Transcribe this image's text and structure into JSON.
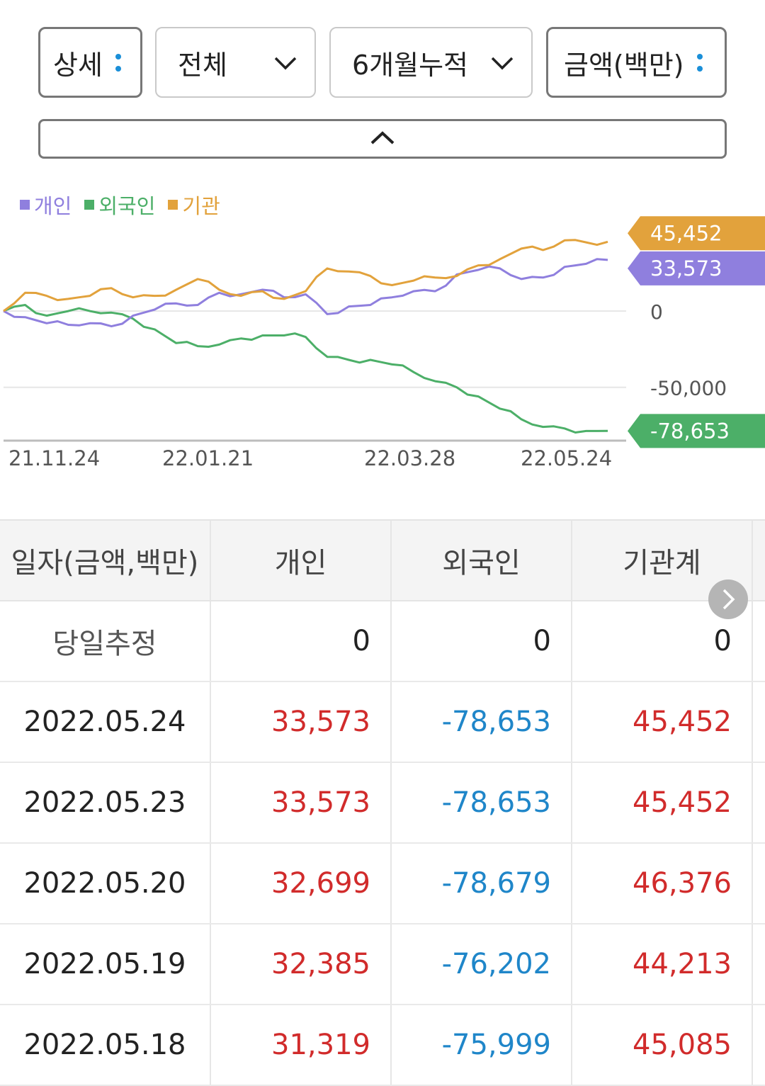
{
  "filters": {
    "detail": "상세",
    "market": "전체",
    "period": "6개월누적",
    "unit": "금액(백만)"
  },
  "colors": {
    "individual": "#8f7fde",
    "foreign": "#4caf68",
    "institution": "#e2a23c"
  },
  "chart_data": {
    "type": "line",
    "x_ticks": [
      "21.11.24",
      "22.01.21",
      "22.03.28",
      "22.05.24"
    ],
    "x_start": "2021.11.24",
    "x_end": "2022.05.24",
    "y_ticks": [
      "0",
      "-50,000"
    ],
    "ylim": [
      -85000,
      60000
    ],
    "series": [
      {
        "name": "개인",
        "key": "individual",
        "values": [
          0,
          -4000,
          -8000,
          -9000,
          -8000,
          -10000,
          -3000,
          1000,
          5000,
          4000,
          12000,
          11000,
          14000,
          9000,
          11000,
          -2000,
          3000,
          4000,
          9000,
          13000,
          13000,
          24000,
          27000,
          28000,
          21000,
          22000,
          29000,
          31000,
          33573
        ]
      },
      {
        "name": "외국인",
        "key": "foreign",
        "values": [
          0,
          4000,
          -3000,
          0,
          0,
          -1000,
          -5000,
          -12000,
          -21000,
          -23000,
          -22000,
          -18000,
          -16000,
          -16000,
          -17000,
          -30000,
          -32000,
          -32000,
          -35000,
          -40000,
          -46000,
          -50000,
          -56000,
          -64000,
          -71000,
          -76000,
          -77000,
          -78679,
          -78653
        ]
      },
      {
        "name": "기관",
        "key": "institution",
        "values": [
          0,
          12000,
          10000,
          8000,
          10000,
          15000,
          9000,
          10000,
          14000,
          21000,
          14000,
          10000,
          13000,
          8000,
          13000,
          28000,
          26000,
          23000,
          17000,
          20000,
          22000,
          23000,
          30000,
          34000,
          41000,
          40000,
          46376,
          45085,
          45452
        ]
      }
    ],
    "end_labels": {
      "individual": "33,573",
      "foreign": "-78,653",
      "institution": "45,452"
    },
    "legend_position": "top-left",
    "grid": true
  },
  "table": {
    "headers": [
      "일자(금액,백만)",
      "개인",
      "외국인",
      "기관계"
    ],
    "rows": [
      {
        "date": "당일추정",
        "individual": "0",
        "foreign": "0",
        "institution": "0",
        "sign": [
          "none",
          "none",
          "none"
        ]
      },
      {
        "date": "2022.05.24",
        "individual": "33,573",
        "foreign": "-78,653",
        "institution": "45,452",
        "sign": [
          "pos",
          "neg",
          "pos"
        ]
      },
      {
        "date": "2022.05.23",
        "individual": "33,573",
        "foreign": "-78,653",
        "institution": "45,452",
        "sign": [
          "pos",
          "neg",
          "pos"
        ]
      },
      {
        "date": "2022.05.20",
        "individual": "32,699",
        "foreign": "-78,679",
        "institution": "46,376",
        "sign": [
          "pos",
          "neg",
          "pos"
        ]
      },
      {
        "date": "2022.05.19",
        "individual": "32,385",
        "foreign": "-76,202",
        "institution": "44,213",
        "sign": [
          "pos",
          "neg",
          "pos"
        ]
      },
      {
        "date": "2022.05.18",
        "individual": "31,319",
        "foreign": "-75,999",
        "institution": "45,085",
        "sign": [
          "pos",
          "neg",
          "pos"
        ]
      }
    ]
  }
}
